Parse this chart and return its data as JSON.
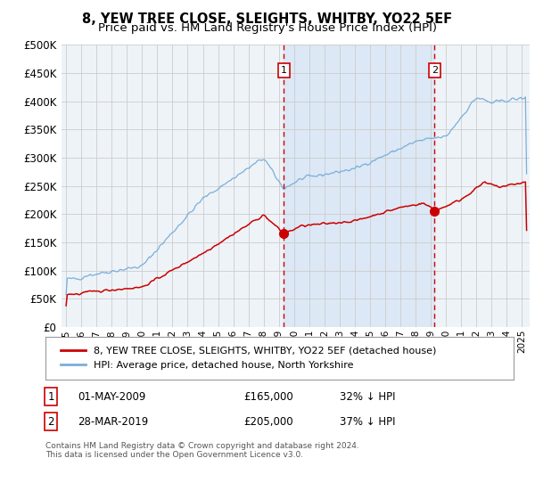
{
  "title": "8, YEW TREE CLOSE, SLEIGHTS, WHITBY, YO22 5EF",
  "subtitle": "Price paid vs. HM Land Registry's House Price Index (HPI)",
  "background_color": "#ffffff",
  "plot_bg_color": "#eef3f8",
  "grid_color": "#cccccc",
  "xlim_start": 1994.7,
  "xlim_end": 2025.5,
  "ylim_min": 0,
  "ylim_max": 500000,
  "ytick_step": 50000,
  "sale1_date": 2009.33,
  "sale1_price": 165000,
  "sale1_label": "1",
  "sale2_date": 2019.24,
  "sale2_price": 205000,
  "sale2_label": "2",
  "shade_color": "#dce8f5",
  "dashed_color": "#cc0000",
  "hpi_color": "#7aaedb",
  "price_color": "#cc0000",
  "legend_label_price": "8, YEW TREE CLOSE, SLEIGHTS, WHITBY, YO22 5EF (detached house)",
  "legend_label_hpi": "HPI: Average price, detached house, North Yorkshire",
  "table_row1": [
    "1",
    "01-MAY-2009",
    "£165,000",
    "32% ↓ HPI"
  ],
  "table_row2": [
    "2",
    "28-MAR-2019",
    "£205,000",
    "37% ↓ HPI"
  ],
  "footnote": "Contains HM Land Registry data © Crown copyright and database right 2024.\nThis data is licensed under the Open Government Licence v3.0.",
  "title_fontsize": 10.5,
  "subtitle_fontsize": 9.5
}
